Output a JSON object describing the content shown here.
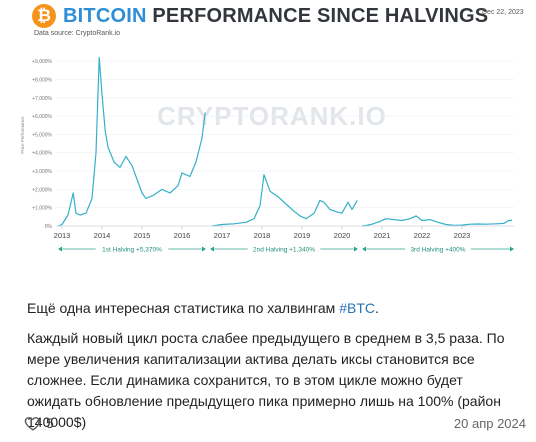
{
  "header": {
    "logo_glyph": "₿",
    "title_accent": "BITCOIN",
    "title_rest": "PERFORMANCE SINCE HALVINGS",
    "date": "Dec 22, 2023",
    "source": "Data source: CryptoRank.io",
    "watermark": "CRYPTORANK.IO",
    "accent_color": "#2f8fd6",
    "logo_color": "#f7931a",
    "line_color": "#35b0c9"
  },
  "chart_data": {
    "type": "line",
    "title": "BITCOIN PERFORMANCE SINCE HALVINGS",
    "ylabel": "Price Performance",
    "y_unit": "%",
    "ylim": [
      0,
      9500
    ],
    "y_ticks": [
      0,
      1000,
      2000,
      3000,
      4000,
      5000,
      6000,
      7000,
      8000,
      9000
    ],
    "y_tick_labels": [
      "0%",
      "+1,000%",
      "+2,000%",
      "+3,000%",
      "+4,000%",
      "+5,000%",
      "+6,000%",
      "+7,000%",
      "+8,000%",
      "+9,000%"
    ],
    "x_tick_labels": [
      "2013",
      "2014",
      "2015",
      "2016",
      "2017",
      "2018",
      "2019",
      "2020",
      "2021",
      "2022",
      "2023"
    ],
    "series": [
      {
        "name": "1st Halving",
        "x": [
          2012.9,
          2013.0,
          2013.15,
          2013.28,
          2013.35,
          2013.45,
          2013.6,
          2013.75,
          2013.85,
          2013.93,
          2014.0,
          2014.08,
          2014.15,
          2014.3,
          2014.45,
          2014.6,
          2014.75,
          2014.9,
          2015.0,
          2015.1,
          2015.3,
          2015.5,
          2015.7,
          2015.9,
          2016.0,
          2016.2,
          2016.35,
          2016.5,
          2016.58
        ],
        "y": [
          0,
          80,
          600,
          1800,
          700,
          600,
          700,
          1500,
          4000,
          9200,
          7200,
          5200,
          4300,
          3500,
          3200,
          3800,
          3300,
          2400,
          1800,
          1500,
          1700,
          2000,
          1800,
          2200,
          2900,
          2700,
          3500,
          4800,
          6200
        ]
      },
      {
        "name": "2nd Halving",
        "x": [
          2016.75,
          2017.0,
          2017.3,
          2017.6,
          2017.8,
          2017.95,
          2018.05,
          2018.2,
          2018.4,
          2018.6,
          2018.8,
          2018.95,
          2019.1,
          2019.3,
          2019.45,
          2019.55,
          2019.7,
          2019.9,
          2020.0,
          2020.15,
          2020.25,
          2020.38
        ],
        "y": [
          0,
          80,
          120,
          200,
          400,
          1100,
          2800,
          1900,
          1600,
          1200,
          800,
          550,
          400,
          700,
          1400,
          1300,
          900,
          750,
          700,
          1300,
          900,
          1400
        ]
      },
      {
        "name": "3rd Halving",
        "x": [
          2020.5,
          2020.6,
          2020.75,
          2020.95,
          2021.1,
          2021.3,
          2021.5,
          2021.7,
          2021.85,
          2022.0,
          2022.2,
          2022.4,
          2022.6,
          2022.8,
          2023.0,
          2023.2,
          2023.4,
          2023.6,
          2023.85,
          2024.05,
          2024.15,
          2024.25
        ],
        "y": [
          0,
          30,
          100,
          250,
          400,
          350,
          300,
          400,
          550,
          300,
          350,
          200,
          80,
          40,
          50,
          100,
          110,
          100,
          120,
          140,
          280,
          320
        ]
      }
    ],
    "annotations": [
      {
        "label": "1st Halving +5,370%",
        "x_start": 2012.9,
        "x_end": 2016.6
      },
      {
        "label": "2nd Halving +1,340%",
        "x_start": 2016.7,
        "x_end": 2020.4
      },
      {
        "label": "3rd Halving +400%",
        "x_start": 2020.5,
        "x_end": 2024.3
      }
    ],
    "grid": true,
    "legend": "none"
  },
  "post": {
    "line1_text": "Ещё одна интересная статистика по халвингам ",
    "hashtag": "#BTC",
    "line1_end": ".",
    "body": "Каждый новый цикл роста слабее предыдущего в среднем в 3,5 раза. По мере увеличения капитализации актива делать иксы становится все сложнее. Если динамика сохранится, то в этом цикле можно будет ожидать обновление предыдущего пика примерно лишь на 100% (район 140000$)"
  },
  "footer": {
    "likes": "5",
    "date": "20 апр 2024",
    "like_icon": "heart-icon"
  }
}
